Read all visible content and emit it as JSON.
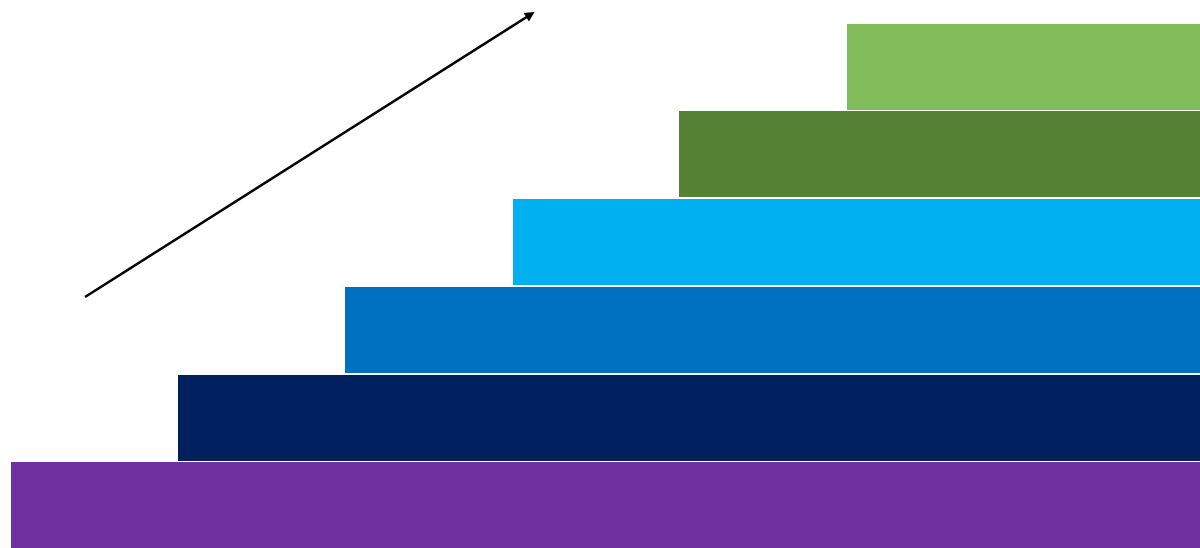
{
  "diagram": {
    "steps": [
      {
        "level": 1,
        "color": "#82bb5a"
      },
      {
        "level": 2,
        "color": "#558235"
      },
      {
        "level": 3,
        "color": "#00b0f0"
      },
      {
        "level": 4,
        "color": "#0070c0"
      },
      {
        "level": 5,
        "color": "#002060"
      },
      {
        "level": 6,
        "color": "#7030a0"
      }
    ],
    "arrow": {
      "color": "#000000",
      "direction": "up-right"
    }
  }
}
